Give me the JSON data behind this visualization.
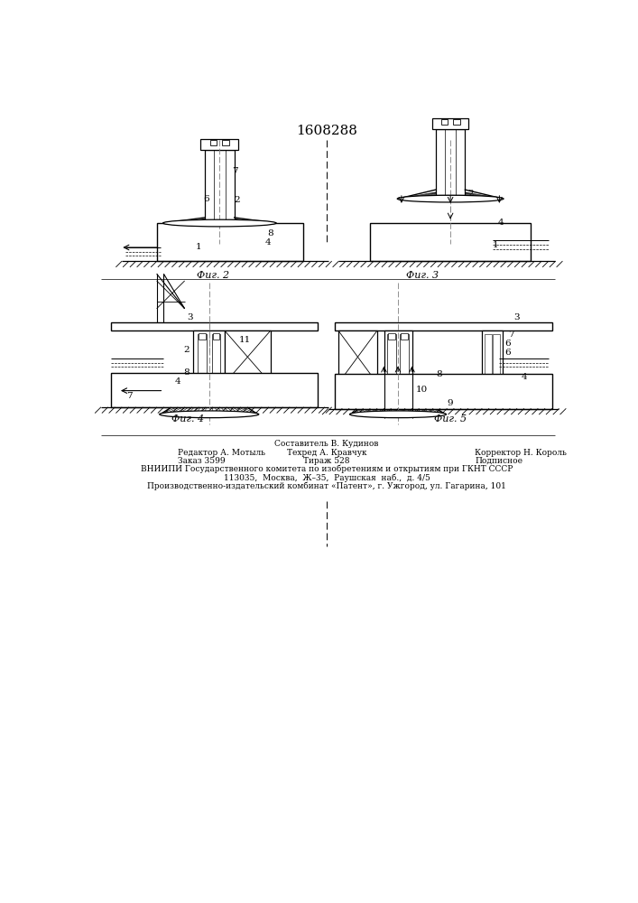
{
  "title": "1608288",
  "bg_color": "#ffffff",
  "fig2_label": "Фиг. 2",
  "fig3_label": "Фиг. 3",
  "fig4_label": "Фиг. 4",
  "fig5_label": "Фиг. 5",
  "footer_line0": "Составитель В. Кудинов",
  "footer_line1a": "Редактор А. Мотыль",
  "footer_line1b": "Техред А. Кравчук",
  "footer_line1c": "Корректор Н. Король",
  "footer_line2a": "Заказ 3599",
  "footer_line2b": "Тираж 528",
  "footer_line2c": "Подписное",
  "footer_line3": "ВНИИПИ Государственного комитета по изобретениям и открытиям при ГКНТ СССР",
  "footer_line4": "113035,  Москва,  Ж–35,  Раушская  наб.,  д. 4/5",
  "footer_line5": "Производственно-издательский комбинат «Патент», г. Ужгород, ул. Гагарина, 101"
}
